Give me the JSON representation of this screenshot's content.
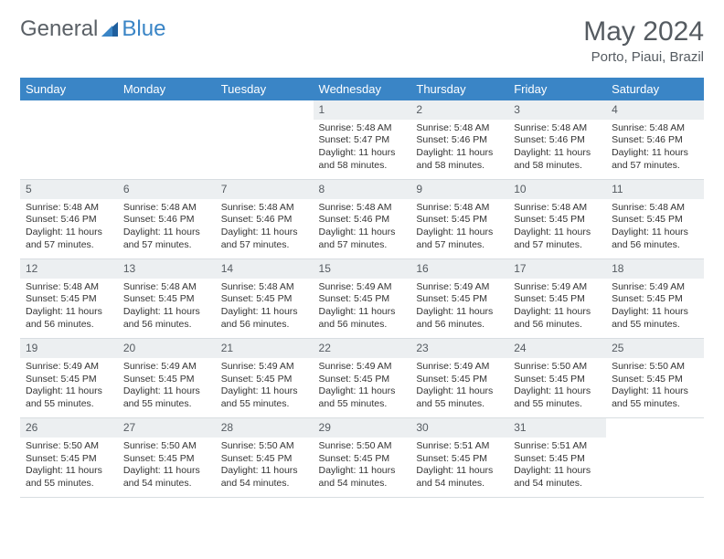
{
  "brand": {
    "part1": "General",
    "part2": "Blue"
  },
  "title": {
    "month": "May 2024",
    "location": "Porto, Piaui, Brazil"
  },
  "colors": {
    "header_bg": "#3a85c6",
    "header_text": "#ffffff",
    "daynum_bg": "#eceff1",
    "text": "#333333",
    "muted": "#555b61",
    "border": "#d8dde1"
  },
  "weekdays": [
    "Sunday",
    "Monday",
    "Tuesday",
    "Wednesday",
    "Thursday",
    "Friday",
    "Saturday"
  ],
  "weeks": [
    {
      "days": [
        null,
        null,
        null,
        {
          "n": "1",
          "sunrise": "Sunrise: 5:48 AM",
          "sunset": "Sunset: 5:47 PM",
          "daylight": "Daylight: 11 hours and 58 minutes."
        },
        {
          "n": "2",
          "sunrise": "Sunrise: 5:48 AM",
          "sunset": "Sunset: 5:46 PM",
          "daylight": "Daylight: 11 hours and 58 minutes."
        },
        {
          "n": "3",
          "sunrise": "Sunrise: 5:48 AM",
          "sunset": "Sunset: 5:46 PM",
          "daylight": "Daylight: 11 hours and 58 minutes."
        },
        {
          "n": "4",
          "sunrise": "Sunrise: 5:48 AM",
          "sunset": "Sunset: 5:46 PM",
          "daylight": "Daylight: 11 hours and 57 minutes."
        }
      ]
    },
    {
      "days": [
        {
          "n": "5",
          "sunrise": "Sunrise: 5:48 AM",
          "sunset": "Sunset: 5:46 PM",
          "daylight": "Daylight: 11 hours and 57 minutes."
        },
        {
          "n": "6",
          "sunrise": "Sunrise: 5:48 AM",
          "sunset": "Sunset: 5:46 PM",
          "daylight": "Daylight: 11 hours and 57 minutes."
        },
        {
          "n": "7",
          "sunrise": "Sunrise: 5:48 AM",
          "sunset": "Sunset: 5:46 PM",
          "daylight": "Daylight: 11 hours and 57 minutes."
        },
        {
          "n": "8",
          "sunrise": "Sunrise: 5:48 AM",
          "sunset": "Sunset: 5:46 PM",
          "daylight": "Daylight: 11 hours and 57 minutes."
        },
        {
          "n": "9",
          "sunrise": "Sunrise: 5:48 AM",
          "sunset": "Sunset: 5:45 PM",
          "daylight": "Daylight: 11 hours and 57 minutes."
        },
        {
          "n": "10",
          "sunrise": "Sunrise: 5:48 AM",
          "sunset": "Sunset: 5:45 PM",
          "daylight": "Daylight: 11 hours and 57 minutes."
        },
        {
          "n": "11",
          "sunrise": "Sunrise: 5:48 AM",
          "sunset": "Sunset: 5:45 PM",
          "daylight": "Daylight: 11 hours and 56 minutes."
        }
      ]
    },
    {
      "days": [
        {
          "n": "12",
          "sunrise": "Sunrise: 5:48 AM",
          "sunset": "Sunset: 5:45 PM",
          "daylight": "Daylight: 11 hours and 56 minutes."
        },
        {
          "n": "13",
          "sunrise": "Sunrise: 5:48 AM",
          "sunset": "Sunset: 5:45 PM",
          "daylight": "Daylight: 11 hours and 56 minutes."
        },
        {
          "n": "14",
          "sunrise": "Sunrise: 5:48 AM",
          "sunset": "Sunset: 5:45 PM",
          "daylight": "Daylight: 11 hours and 56 minutes."
        },
        {
          "n": "15",
          "sunrise": "Sunrise: 5:49 AM",
          "sunset": "Sunset: 5:45 PM",
          "daylight": "Daylight: 11 hours and 56 minutes."
        },
        {
          "n": "16",
          "sunrise": "Sunrise: 5:49 AM",
          "sunset": "Sunset: 5:45 PM",
          "daylight": "Daylight: 11 hours and 56 minutes."
        },
        {
          "n": "17",
          "sunrise": "Sunrise: 5:49 AM",
          "sunset": "Sunset: 5:45 PM",
          "daylight": "Daylight: 11 hours and 56 minutes."
        },
        {
          "n": "18",
          "sunrise": "Sunrise: 5:49 AM",
          "sunset": "Sunset: 5:45 PM",
          "daylight": "Daylight: 11 hours and 55 minutes."
        }
      ]
    },
    {
      "days": [
        {
          "n": "19",
          "sunrise": "Sunrise: 5:49 AM",
          "sunset": "Sunset: 5:45 PM",
          "daylight": "Daylight: 11 hours and 55 minutes."
        },
        {
          "n": "20",
          "sunrise": "Sunrise: 5:49 AM",
          "sunset": "Sunset: 5:45 PM",
          "daylight": "Daylight: 11 hours and 55 minutes."
        },
        {
          "n": "21",
          "sunrise": "Sunrise: 5:49 AM",
          "sunset": "Sunset: 5:45 PM",
          "daylight": "Daylight: 11 hours and 55 minutes."
        },
        {
          "n": "22",
          "sunrise": "Sunrise: 5:49 AM",
          "sunset": "Sunset: 5:45 PM",
          "daylight": "Daylight: 11 hours and 55 minutes."
        },
        {
          "n": "23",
          "sunrise": "Sunrise: 5:49 AM",
          "sunset": "Sunset: 5:45 PM",
          "daylight": "Daylight: 11 hours and 55 minutes."
        },
        {
          "n": "24",
          "sunrise": "Sunrise: 5:50 AM",
          "sunset": "Sunset: 5:45 PM",
          "daylight": "Daylight: 11 hours and 55 minutes."
        },
        {
          "n": "25",
          "sunrise": "Sunrise: 5:50 AM",
          "sunset": "Sunset: 5:45 PM",
          "daylight": "Daylight: 11 hours and 55 minutes."
        }
      ]
    },
    {
      "days": [
        {
          "n": "26",
          "sunrise": "Sunrise: 5:50 AM",
          "sunset": "Sunset: 5:45 PM",
          "daylight": "Daylight: 11 hours and 55 minutes."
        },
        {
          "n": "27",
          "sunrise": "Sunrise: 5:50 AM",
          "sunset": "Sunset: 5:45 PM",
          "daylight": "Daylight: 11 hours and 54 minutes."
        },
        {
          "n": "28",
          "sunrise": "Sunrise: 5:50 AM",
          "sunset": "Sunset: 5:45 PM",
          "daylight": "Daylight: 11 hours and 54 minutes."
        },
        {
          "n": "29",
          "sunrise": "Sunrise: 5:50 AM",
          "sunset": "Sunset: 5:45 PM",
          "daylight": "Daylight: 11 hours and 54 minutes."
        },
        {
          "n": "30",
          "sunrise": "Sunrise: 5:51 AM",
          "sunset": "Sunset: 5:45 PM",
          "daylight": "Daylight: 11 hours and 54 minutes."
        },
        {
          "n": "31",
          "sunrise": "Sunrise: 5:51 AM",
          "sunset": "Sunset: 5:45 PM",
          "daylight": "Daylight: 11 hours and 54 minutes."
        },
        null
      ]
    }
  ]
}
